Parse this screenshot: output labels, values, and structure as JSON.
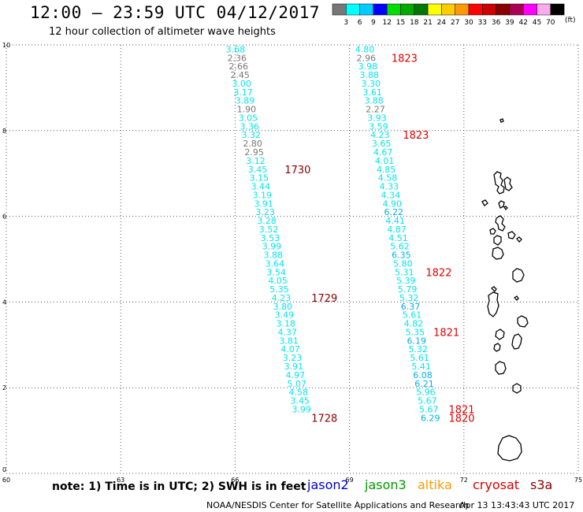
{
  "header": {
    "title": "12:00 – 23:59 UTC 04/12/2017",
    "subtitle": "12 hour collection of altimeter wave heights"
  },
  "legend": {
    "colors": [
      "#777777",
      "#00ffff",
      "#00ccff",
      "#0000ff",
      "#00dd00",
      "#00aa00",
      "#007700",
      "#ffff00",
      "#ffcc00",
      "#ff9900",
      "#ff0000",
      "#cc0000",
      "#880000",
      "#aa0055",
      "#ff00ff",
      "#ffaaee",
      "#000000"
    ],
    "labels": [
      "3",
      "6",
      "9",
      "12",
      "15",
      "18",
      "21",
      "24",
      "27",
      "30",
      "33",
      "36",
      "39",
      "42",
      "45",
      "70"
    ],
    "unit": "(ft)"
  },
  "footer": {
    "note": "note: 1) Time is in UTC; 2) SWH is in feet",
    "satellites": [
      {
        "name": "jason2",
        "color": "#0000cc"
      },
      {
        "name": "jason3",
        "color": "#009900"
      },
      {
        "name": "altika",
        "color": "#ff9900"
      },
      {
        "name": "cryosat",
        "color": "#dd0000"
      },
      {
        "name": "s3a",
        "color": "#880000"
      }
    ],
    "credit": "NOAA/NESDIS Center for Satellite Applications and Research",
    "timestamp": "Apr 13 13:43:43 UTC 2017"
  },
  "chart_data": {
    "type": "scatter",
    "xlim": [
      60,
      75
    ],
    "ylim": [
      0,
      10
    ],
    "xticks": [
      "60",
      "63",
      "66",
      "69",
      "72",
      "75"
    ],
    "yticks": [
      "0",
      "2",
      "4",
      "6",
      "8",
      "10"
    ],
    "grid": true,
    "series": [
      {
        "track": "west",
        "points": [
          {
            "x": 66.01,
            "y": 9.9,
            "v": "3.68"
          },
          {
            "x": 66.05,
            "y": 9.7,
            "v": "2.36"
          },
          {
            "x": 66.09,
            "y": 9.5,
            "v": "2.66"
          },
          {
            "x": 66.13,
            "y": 9.3,
            "v": "2.45"
          },
          {
            "x": 66.17,
            "y": 9.1,
            "v": "3.00"
          },
          {
            "x": 66.21,
            "y": 8.9,
            "v": "3.17"
          },
          {
            "x": 66.26,
            "y": 8.7,
            "v": "3.89"
          },
          {
            "x": 66.3,
            "y": 8.5,
            "v": "1.90"
          },
          {
            "x": 66.34,
            "y": 8.3,
            "v": "3.05"
          },
          {
            "x": 66.38,
            "y": 8.1,
            "v": "3.36"
          },
          {
            "x": 66.42,
            "y": 7.9,
            "v": "3.32"
          },
          {
            "x": 66.46,
            "y": 7.7,
            "v": "2.80"
          },
          {
            "x": 66.5,
            "y": 7.5,
            "v": "2.95"
          },
          {
            "x": 66.54,
            "y": 7.3,
            "v": "3.12"
          },
          {
            "x": 66.59,
            "y": 7.1,
            "v": "3.45"
          },
          {
            "x": 66.63,
            "y": 6.9,
            "v": "3.15"
          },
          {
            "x": 66.67,
            "y": 6.7,
            "v": "3.44"
          },
          {
            "x": 66.71,
            "y": 6.5,
            "v": "3.19"
          },
          {
            "x": 66.75,
            "y": 6.3,
            "v": "3.91"
          },
          {
            "x": 66.79,
            "y": 6.1,
            "v": "3.23"
          },
          {
            "x": 66.83,
            "y": 5.9,
            "v": "3.28"
          },
          {
            "x": 66.88,
            "y": 5.7,
            "v": "3.52"
          },
          {
            "x": 66.92,
            "y": 5.5,
            "v": "3.53"
          },
          {
            "x": 66.96,
            "y": 5.3,
            "v": "3.99"
          },
          {
            "x": 67.0,
            "y": 5.1,
            "v": "3.88"
          },
          {
            "x": 67.04,
            "y": 4.9,
            "v": "3.64"
          },
          {
            "x": 67.08,
            "y": 4.7,
            "v": "3.54"
          },
          {
            "x": 67.12,
            "y": 4.5,
            "v": "4.05"
          },
          {
            "x": 67.16,
            "y": 4.3,
            "v": "5.35"
          },
          {
            "x": 67.21,
            "y": 4.1,
            "v": "4.23"
          },
          {
            "x": 67.25,
            "y": 3.9,
            "v": "3.80"
          },
          {
            "x": 67.29,
            "y": 3.7,
            "v": "3.49"
          },
          {
            "x": 67.33,
            "y": 3.5,
            "v": "3.18"
          },
          {
            "x": 67.37,
            "y": 3.3,
            "v": "4.37"
          },
          {
            "x": 67.41,
            "y": 3.1,
            "v": "3.81"
          },
          {
            "x": 67.45,
            "y": 2.9,
            "v": "4.07"
          },
          {
            "x": 67.5,
            "y": 2.7,
            "v": "3.23"
          },
          {
            "x": 67.54,
            "y": 2.5,
            "v": "3.91"
          },
          {
            "x": 67.58,
            "y": 2.3,
            "v": "4.97"
          },
          {
            "x": 67.62,
            "y": 2.1,
            "v": "5.07"
          },
          {
            "x": 67.66,
            "y": 1.9,
            "v": "4.58"
          },
          {
            "x": 67.7,
            "y": 1.7,
            "v": "3.45"
          },
          {
            "x": 67.74,
            "y": 1.5,
            "v": "3.99"
          }
        ]
      },
      {
        "track": "east",
        "points": [
          {
            "x": 69.4,
            "y": 9.9,
            "v": "4.80"
          },
          {
            "x": 69.44,
            "y": 9.7,
            "v": "2.96"
          },
          {
            "x": 69.48,
            "y": 9.5,
            "v": "3.98"
          },
          {
            "x": 69.52,
            "y": 9.3,
            "v": "3.88"
          },
          {
            "x": 69.56,
            "y": 9.1,
            "v": "3.30"
          },
          {
            "x": 69.6,
            "y": 8.9,
            "v": "3.61"
          },
          {
            "x": 69.64,
            "y": 8.7,
            "v": "3.88"
          },
          {
            "x": 69.68,
            "y": 8.5,
            "v": "2.27"
          },
          {
            "x": 69.72,
            "y": 8.3,
            "v": "3.93"
          },
          {
            "x": 69.76,
            "y": 8.1,
            "v": "3.59"
          },
          {
            "x": 69.8,
            "y": 7.9,
            "v": "4.23"
          },
          {
            "x": 69.84,
            "y": 7.7,
            "v": "3.65"
          },
          {
            "x": 69.88,
            "y": 7.5,
            "v": "4.67"
          },
          {
            "x": 69.92,
            "y": 7.3,
            "v": "4.01"
          },
          {
            "x": 69.96,
            "y": 7.1,
            "v": "4.85"
          },
          {
            "x": 70.0,
            "y": 6.9,
            "v": "4.58"
          },
          {
            "x": 70.04,
            "y": 6.7,
            "v": "4.33"
          },
          {
            "x": 70.08,
            "y": 6.5,
            "v": "4.34"
          },
          {
            "x": 70.12,
            "y": 6.3,
            "v": "4.90"
          },
          {
            "x": 70.16,
            "y": 6.1,
            "v": "6.22"
          },
          {
            "x": 70.2,
            "y": 5.9,
            "v": "4.41"
          },
          {
            "x": 70.24,
            "y": 5.7,
            "v": "4.87"
          },
          {
            "x": 70.28,
            "y": 5.5,
            "v": "4.51"
          },
          {
            "x": 70.32,
            "y": 5.3,
            "v": "5.62"
          },
          {
            "x": 70.36,
            "y": 5.1,
            "v": "6.35"
          },
          {
            "x": 70.4,
            "y": 4.9,
            "v": "5.80"
          },
          {
            "x": 70.44,
            "y": 4.7,
            "v": "5.31"
          },
          {
            "x": 70.48,
            "y": 4.5,
            "v": "5.39"
          },
          {
            "x": 70.52,
            "y": 4.3,
            "v": "5.79"
          },
          {
            "x": 70.56,
            "y": 4.1,
            "v": "5.32"
          },
          {
            "x": 70.6,
            "y": 3.9,
            "v": "6.37"
          },
          {
            "x": 70.64,
            "y": 3.7,
            "v": "5.61"
          },
          {
            "x": 70.68,
            "y": 3.5,
            "v": "4.82"
          },
          {
            "x": 70.72,
            "y": 3.3,
            "v": "5.35"
          },
          {
            "x": 70.76,
            "y": 3.1,
            "v": "6.19"
          },
          {
            "x": 70.8,
            "y": 2.9,
            "v": "5.32"
          },
          {
            "x": 70.84,
            "y": 2.7,
            "v": "5.61"
          },
          {
            "x": 70.88,
            "y": 2.5,
            "v": "5.41"
          },
          {
            "x": 70.92,
            "y": 2.3,
            "v": "6.08"
          },
          {
            "x": 70.96,
            "y": 2.1,
            "v": "6.21"
          },
          {
            "x": 71.0,
            "y": 1.9,
            "v": "5.96"
          },
          {
            "x": 71.04,
            "y": 1.7,
            "v": "5.67"
          },
          {
            "x": 71.08,
            "y": 1.5,
            "v": "5.67"
          },
          {
            "x": 71.12,
            "y": 1.3,
            "v": "6.29"
          }
        ]
      }
    ],
    "annotations": [
      {
        "text": "1823",
        "x": 70.1,
        "y": 9.7,
        "color": "#dd0000"
      },
      {
        "text": "1823",
        "x": 70.4,
        "y": 7.9,
        "color": "#dd0000"
      },
      {
        "text": "1730",
        "x": 67.3,
        "y": 7.1,
        "color": "#880000"
      },
      {
        "text": "1822",
        "x": 71.0,
        "y": 4.7,
        "color": "#dd0000"
      },
      {
        "text": "1729",
        "x": 68.0,
        "y": 4.1,
        "color": "#880000"
      },
      {
        "text": "1821",
        "x": 71.2,
        "y": 3.3,
        "color": "#dd0000"
      },
      {
        "text": "1821",
        "x": 71.6,
        "y": 1.5,
        "color": "#dd0000"
      },
      {
        "text": "1820",
        "x": 71.6,
        "y": 1.3,
        "color": "#dd0000"
      },
      {
        "text": "1728",
        "x": 68.0,
        "y": 1.3,
        "color": "#880000"
      }
    ]
  }
}
